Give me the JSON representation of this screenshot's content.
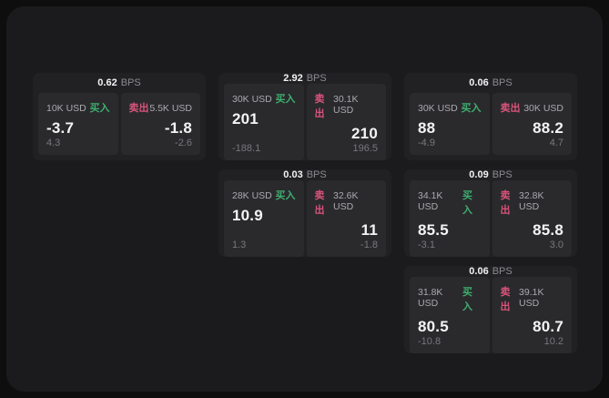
{
  "theme": {
    "outer_background": "#0e0e0f",
    "window_background": "#1b1b1d",
    "card_background": "#212124",
    "panel_background": "#2a2a2d",
    "buy_color": "#3fae6e",
    "sell_color": "#d9537a"
  },
  "labels": {
    "bps": "BPS",
    "buy": "买入",
    "sell": "卖出"
  },
  "cards": [
    {
      "bps": "0.62",
      "buy": {
        "amount": "10K USD",
        "price": "-3.7",
        "change": "4.3"
      },
      "sell": {
        "amount": "5.5K USD",
        "price": "-1.8",
        "change": "-2.6"
      }
    },
    {
      "bps": "2.92",
      "buy": {
        "amount": "30K USD",
        "price": "201",
        "change": "-188.1"
      },
      "sell": {
        "amount": "30.1K USD",
        "price": "210",
        "change": "196.5"
      }
    },
    {
      "bps": "0.06",
      "buy": {
        "amount": "30K USD",
        "price": "88",
        "change": "-4.9"
      },
      "sell": {
        "amount": "30K USD",
        "price": "88.2",
        "change": "4.7"
      }
    },
    {
      "bps": "0.03",
      "buy": {
        "amount": "28K USD",
        "price": "10.9",
        "change": "1.3"
      },
      "sell": {
        "amount": "32.6K USD",
        "price": "11",
        "change": "-1.8"
      }
    },
    {
      "bps": "0.09",
      "buy": {
        "amount": "34.1K USD",
        "price": "85.5",
        "change": "-3.1"
      },
      "sell": {
        "amount": "32.8K USD",
        "price": "85.8",
        "change": "3.0"
      }
    },
    {
      "bps": "0.06",
      "buy": {
        "amount": "31.8K USD",
        "price": "80.5",
        "change": "-10.8"
      },
      "sell": {
        "amount": "39.1K USD",
        "price": "80.7",
        "change": "10.2"
      }
    }
  ]
}
